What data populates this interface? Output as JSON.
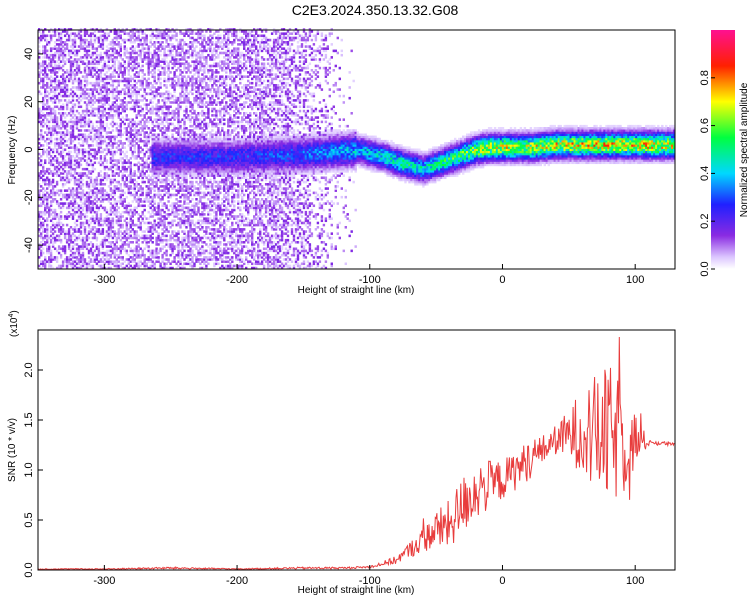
{
  "title": "C2E3.2024.350.13.32.G08",
  "chart_data": [
    {
      "type": "heatmap",
      "xlabel": "Height of straight line (km)",
      "ylabel": "Frequency (Hz)",
      "xlim": [
        -350,
        130
      ],
      "ylim": [
        -50,
        50
      ],
      "xticks": [
        -300,
        -200,
        -100,
        0,
        100
      ],
      "yticks": [
        -40,
        -20,
        0,
        20,
        40
      ],
      "colorbar": {
        "label": "Normalized spectral amplitude",
        "range": [
          0.0,
          1.0
        ],
        "ticks": [
          "0.0",
          "0.2",
          "0.4",
          "0.6",
          "0.8"
        ],
        "colormap": "rainbow (white-violet-blue-cyan-green-yellow-red-magenta)"
      },
      "ridge": {
        "x": [
          -250,
          -200,
          -150,
          -110,
          -90,
          -75,
          -60,
          -50,
          -40,
          -30,
          -20,
          -10,
          0,
          20,
          40,
          60,
          80,
          100,
          130
        ],
        "freq_hz": [
          -3,
          -3,
          -2,
          0,
          -3,
          -6,
          -8,
          -6,
          -4,
          -2,
          0,
          1,
          1,
          1,
          2,
          2,
          2,
          2,
          2
        ],
        "peak_amplitude": [
          0.3,
          0.3,
          0.35,
          0.45,
          0.5,
          0.55,
          0.5,
          0.55,
          0.6,
          0.65,
          0.7,
          0.75,
          0.75,
          0.75,
          0.78,
          0.8,
          0.8,
          0.8,
          0.8
        ]
      },
      "noise_region_x": [
        -350,
        -110
      ]
    },
    {
      "type": "line",
      "xlabel": "Height of straight line (km)",
      "ylabel": "SNR (10 * v/v)",
      "yscale_label": "(x10",
      "yscale_exp": "4",
      "xlim": [
        -350,
        130
      ],
      "ylim": [
        0,
        2.4
      ],
      "xticks": [
        -300,
        -200,
        -100,
        0,
        100
      ],
      "yticks": [
        "0.0",
        "0.5",
        "1.0",
        "1.5",
        "2.0"
      ],
      "color": "#e83c3c",
      "series": [
        {
          "x": [
            -350,
            -300,
            -250,
            -200,
            -150,
            -120,
            -100,
            -80,
            -70,
            -60,
            -50,
            -40,
            -30,
            -20,
            -10,
            0,
            10,
            20,
            30,
            40,
            50,
            60,
            70,
            80,
            90,
            100,
            110,
            120,
            130
          ],
          "y": [
            0.01,
            0.01,
            0.02,
            0.01,
            0.02,
            0.02,
            0.03,
            0.1,
            0.2,
            0.3,
            0.4,
            0.45,
            0.65,
            0.8,
            0.85,
            0.9,
            1.0,
            1.1,
            1.2,
            1.3,
            1.35,
            1.4,
            1.35,
            1.35,
            1.3,
            1.3,
            1.27,
            1.27,
            1.25
          ],
          "noise_amplitude": [
            0.005,
            0.005,
            0.01,
            0.005,
            0.01,
            0.01,
            0.01,
            0.04,
            0.08,
            0.12,
            0.2,
            0.25,
            0.3,
            0.3,
            0.25,
            0.2,
            0.2,
            0.2,
            0.15,
            0.15,
            0.25,
            0.45,
            0.6,
            0.7,
            0.6,
            0.3,
            0.03,
            0.02,
            0.02
          ]
        }
      ]
    }
  ]
}
